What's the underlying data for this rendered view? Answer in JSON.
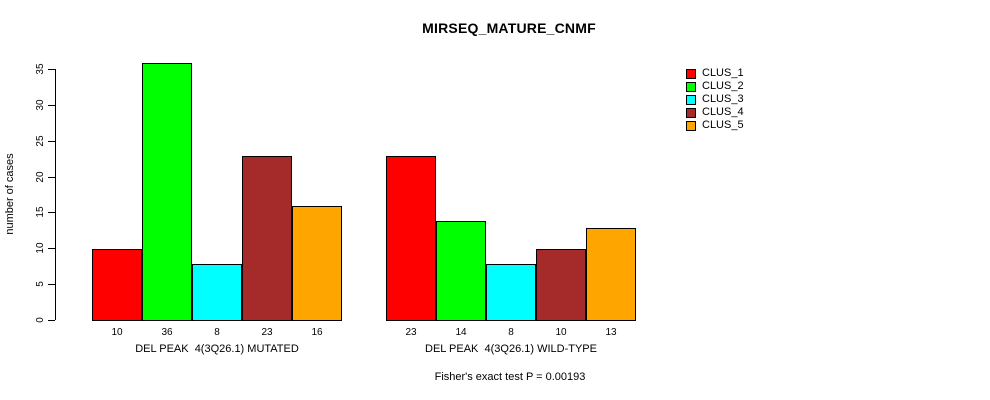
{
  "chart_data": {
    "type": "bar",
    "title": "MIRSEQ_MATURE_CNMF",
    "ylabel": "number of cases",
    "ylim": [
      0,
      35
    ],
    "yticks": [
      0,
      5,
      10,
      15,
      20,
      25,
      30,
      35
    ],
    "grid": false,
    "legend_position": "topright",
    "groups": [
      {
        "label": "DEL PEAK  4(3Q26.1) MUTATED",
        "values": [
          10,
          36,
          8,
          23,
          16
        ]
      },
      {
        "label": "DEL PEAK  4(3Q26.1) WILD-TYPE",
        "values": [
          23,
          14,
          8,
          10,
          13
        ]
      }
    ],
    "series": [
      {
        "name": "CLUS_1",
        "color": "#FF0000"
      },
      {
        "name": "CLUS_2",
        "color": "#00FF00"
      },
      {
        "name": "CLUS_3",
        "color": "#00FFFF"
      },
      {
        "name": "CLUS_4",
        "color": "#A52A2A"
      },
      {
        "name": "CLUS_5",
        "color": "#FFA500"
      }
    ],
    "annotation": "Fisher's exact test P = 0.00193"
  }
}
